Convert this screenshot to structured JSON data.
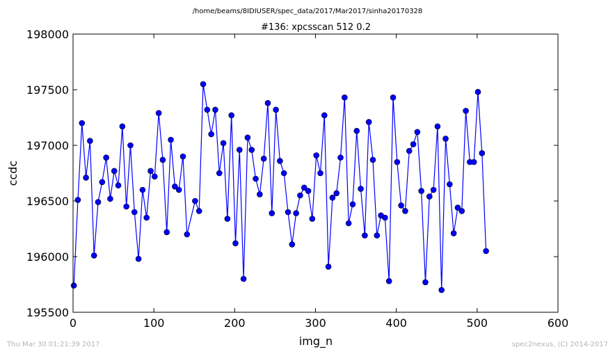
{
  "header": {
    "path": "/home/beams/8IDIUSER/spec_data/2017/Mar2017/sinha20170328"
  },
  "footer": {
    "timestamp": "Thu Mar 30 01:21:39 2017",
    "credit": "spec2nexus, (C) 2014-2017"
  },
  "chart_data": {
    "type": "line",
    "title": "#136: xpcsscan 512 0.2",
    "xlabel": "img_n",
    "ylabel": "ccdc",
    "xlim": [
      0,
      600
    ],
    "ylim": [
      195500,
      198000
    ],
    "xticks": [
      0,
      100,
      200,
      300,
      400,
      500,
      600
    ],
    "xtick_labels": [
      "0",
      "100",
      "200",
      "300",
      "400",
      "500",
      "600"
    ],
    "yticks": [
      195500,
      196000,
      196500,
      197000,
      197500,
      198000
    ],
    "ytick_labels": [
      "195500",
      "196000",
      "196500",
      "197000",
      "197500",
      "198000"
    ],
    "grid": false,
    "line_color": "#0000ff",
    "marker_color": "#0000ff",
    "series": [
      {
        "x": [
          1,
          6,
          11,
          16,
          21,
          26,
          31,
          36,
          41,
          46,
          51,
          56,
          61,
          66,
          71,
          76,
          81,
          86,
          91,
          96,
          101,
          106,
          111,
          116,
          121,
          126,
          131,
          136,
          141,
          151,
          156,
          161,
          166,
          171,
          176,
          181,
          186,
          191,
          196,
          201,
          206,
          211,
          216,
          221,
          226,
          231,
          236,
          241,
          246,
          251,
          256,
          261,
          266,
          271,
          276,
          281,
          286,
          291,
          296,
          301,
          306,
          311,
          316,
          321,
          326,
          331,
          336,
          341,
          346,
          351,
          356,
          361,
          366,
          371,
          376,
          381,
          386,
          391,
          396,
          401,
          406,
          411,
          416,
          421,
          426,
          431,
          436,
          441,
          446,
          451,
          456,
          461,
          466,
          471,
          476,
          481,
          486,
          491,
          496,
          501,
          506,
          511
        ],
        "y": [
          195740,
          196510,
          197200,
          196710,
          197040,
          196010,
          196490,
          196670,
          196890,
          196520,
          196770,
          196640,
          197170,
          196450,
          197000,
          196400,
          195980,
          196600,
          196350,
          196770,
          196720,
          197290,
          196870,
          196220,
          197050,
          196630,
          196600,
          196900,
          196200,
          196500,
          196410,
          197550,
          197320,
          197100,
          197320,
          196750,
          197020,
          196340,
          197270,
          196120,
          196960,
          195800,
          197070,
          196960,
          196700,
          196560,
          196880,
          197380,
          196390,
          197320,
          196860,
          196750,
          196400,
          196110,
          196390,
          196550,
          196620,
          196590,
          196340,
          196910,
          196750,
          197270,
          195910,
          196530,
          196570,
          196890,
          197430,
          196300,
          196470,
          197130,
          196610,
          196190,
          197210,
          196870,
          196190,
          196370,
          196350,
          195780,
          197430,
          196850,
          196460,
          196410,
          196950,
          197010,
          197120,
          196590,
          195770,
          196540,
          196600,
          197170,
          195700,
          197060,
          196650,
          196210,
          196440,
          196410,
          197310,
          196850,
          196850,
          197480,
          196930,
          196050
        ]
      }
    ]
  }
}
